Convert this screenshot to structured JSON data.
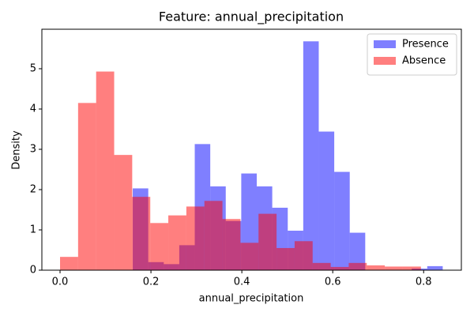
{
  "chart_data": {
    "type": "histogram",
    "title": "Feature: annual_precipitation",
    "xlabel": "annual_precipitation",
    "ylabel": "Density",
    "xlim": [
      -0.04,
      0.883
    ],
    "ylim": [
      0,
      5.98
    ],
    "xticks": [
      {
        "value": 0,
        "label": "0.0"
      },
      0.2,
      0.4,
      0.6,
      0.8
    ],
    "yticks": [
      0,
      1,
      2,
      3,
      4,
      5
    ],
    "legend": "upper right",
    "series": [
      {
        "name": "Presence",
        "color": "#0000ff",
        "opacity": 0.5,
        "bins": [
          0.16,
          0.1941,
          0.2282,
          0.2623,
          0.2964,
          0.3305,
          0.3646,
          0.3987,
          0.4328,
          0.4669,
          0.501,
          0.5351,
          0.5692,
          0.6033,
          0.6374,
          0.6715,
          0.7056,
          0.7397,
          0.7738,
          0.8079,
          0.842
        ],
        "values": [
          2.03,
          0.2,
          0.15,
          0.62,
          3.13,
          2.08,
          1.22,
          2.4,
          2.08,
          1.55,
          0.98,
          5.68,
          3.44,
          2.44,
          0.93,
          0,
          0,
          0,
          0.04,
          0.1
        ]
      },
      {
        "name": "Absence",
        "color": "#ff0000",
        "opacity": 0.5,
        "bins": [
          0,
          0.0397,
          0.0794,
          0.1191,
          0.1588,
          0.1985,
          0.2382,
          0.2779,
          0.3176,
          0.3573,
          0.397,
          0.4367,
          0.4764,
          0.5161,
          0.5558,
          0.5955,
          0.6352,
          0.6749,
          0.7146,
          0.7543,
          0.794
        ],
        "values": [
          0.33,
          4.15,
          4.93,
          2.86,
          1.82,
          1.17,
          1.36,
          1.58,
          1.72,
          1.27,
          0.68,
          1.4,
          0.55,
          0.72,
          0.18,
          0.08,
          0.18,
          0.12,
          0.09,
          0.09
        ]
      }
    ]
  }
}
